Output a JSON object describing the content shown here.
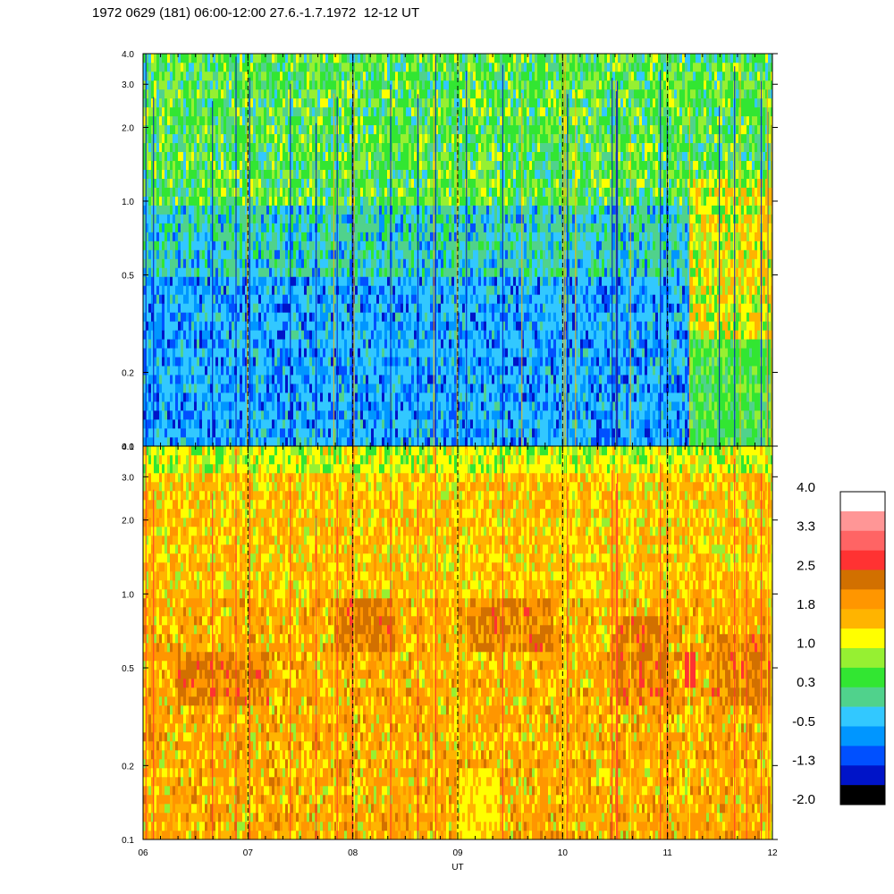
{
  "title": "1972 0629 (181) 06:00-12:00 27.6.-1.7.1972  12-12 UT",
  "chart_data": [
    {
      "type": "heatmap",
      "panel": "top",
      "x_ticks": [
        "06",
        "07",
        "08",
        "09",
        "10",
        "11",
        "12"
      ],
      "y_scale": "log",
      "y_range": [
        0.1,
        4.0
      ],
      "y_ticks": [
        "0.1",
        "0.2",
        "0.5",
        "1.0",
        "2.0",
        "3.0",
        "4.0"
      ],
      "vertical_dashed_lines_at_hours": [
        7,
        8,
        9,
        10,
        11
      ],
      "dominant_colors": [
        "#00c8ff",
        "#32e632",
        "#0064ff"
      ],
      "feature": "yellow/orange region 11.2-12 UT between 0.3 and 1.2"
    },
    {
      "type": "heatmap",
      "panel": "bottom",
      "x_ticks": [
        "06",
        "07",
        "08",
        "09",
        "10",
        "11",
        "12"
      ],
      "xlabel": "UT",
      "y_scale": "log",
      "y_range": [
        0.1,
        4.0
      ],
      "y_ticks": [
        "0.1",
        "0.2",
        "0.5",
        "1.0",
        "2.0",
        "3.0",
        "4.0"
      ],
      "vertical_dashed_lines_at_hours": [
        7,
        8,
        9,
        10,
        11
      ],
      "dominant_colors": [
        "#ffb400",
        "#ff9600",
        "#ffff00",
        "#d27000"
      ]
    }
  ],
  "colorbar": {
    "labels": [
      "4.0",
      "3.3",
      "2.5",
      "1.8",
      "1.0",
      "0.3",
      "-0.5",
      "-1.3",
      "-2.0"
    ],
    "colors": [
      "#ffffff",
      "#ff9696",
      "#ff6464",
      "#ff3232",
      "#d27000",
      "#ff9600",
      "#ffb400",
      "#ffff00",
      "#96f032",
      "#32e632",
      "#50d28c",
      "#32c8ff",
      "#0096ff",
      "#0050ff",
      "#0014c8",
      "#000000"
    ]
  },
  "palette": {
    "dark_blue": "#0014c8",
    "blue": "#0050ff",
    "mid_blue": "#0096ff",
    "cyan": "#32c8ff",
    "teal_green": "#50d28c",
    "green": "#32e632",
    "yellow_green": "#96f032",
    "yellow": "#ffff00",
    "light_orange": "#ffb400",
    "orange": "#ff9600",
    "dark_orange": "#d27000",
    "red": "#ff3232"
  }
}
